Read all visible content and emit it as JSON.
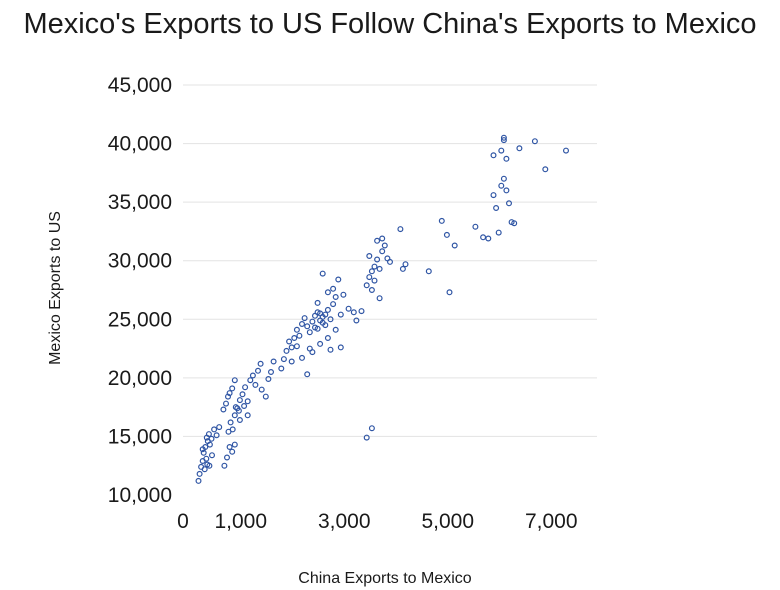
{
  "chart_data": {
    "type": "scatter",
    "title": "Mexico's Exports to US Follow China's Exports to Mexico",
    "xlabel": "China Exports to Mexico",
    "ylabel": "Mexico Exports to US",
    "xlim": [
      0,
      8000
    ],
    "ylim": [
      10000,
      45000
    ],
    "x_ticks": [
      0,
      1000,
      3000,
      5000,
      7000
    ],
    "x_tick_labels": [
      "0",
      "1,000",
      "3,000",
      "5,000",
      "7,000"
    ],
    "y_ticks": [
      10000,
      15000,
      20000,
      25000,
      30000,
      35000,
      40000,
      45000
    ],
    "y_tick_labels": [
      "10,000",
      "15,000",
      "20,000",
      "25,000",
      "30,000",
      "35,000",
      "40,000",
      "45,000"
    ],
    "grid": true,
    "legend": "none",
    "marker_color": "#2f55a4",
    "series": [
      {
        "points": [
          [
            300,
            11200
          ],
          [
            320,
            11800
          ],
          [
            350,
            12400
          ],
          [
            380,
            12900
          ],
          [
            420,
            12200
          ],
          [
            450,
            13100
          ],
          [
            400,
            13600
          ],
          [
            430,
            14100
          ],
          [
            480,
            14600
          ],
          [
            500,
            15200
          ],
          [
            520,
            14300
          ],
          [
            550,
            14800
          ],
          [
            600,
            15600
          ],
          [
            560,
            13400
          ],
          [
            470,
            12600
          ],
          [
            650,
            15100
          ],
          [
            700,
            15800
          ],
          [
            380,
            13900
          ],
          [
            510,
            12500
          ],
          [
            460,
            14900
          ],
          [
            800,
            12500
          ],
          [
            850,
            13200
          ],
          [
            900,
            14100
          ],
          [
            950,
            13700
          ],
          [
            1000,
            14300
          ],
          [
            880,
            15400
          ],
          [
            920,
            16200
          ],
          [
            1000,
            16800
          ],
          [
            1050,
            17400
          ],
          [
            1100,
            18100
          ],
          [
            780,
            17300
          ],
          [
            830,
            17800
          ],
          [
            870,
            18400
          ],
          [
            950,
            19100
          ],
          [
            1000,
            19800
          ],
          [
            1080,
            17200
          ],
          [
            1150,
            18600
          ],
          [
            1200,
            19200
          ],
          [
            1250,
            18000
          ],
          [
            1300,
            19800
          ],
          [
            1180,
            17600
          ],
          [
            1350,
            20200
          ],
          [
            1400,
            19400
          ],
          [
            1450,
            20600
          ],
          [
            1500,
            21200
          ],
          [
            1520,
            19000
          ],
          [
            1600,
            18400
          ],
          [
            1650,
            19900
          ],
          [
            1700,
            20500
          ],
          [
            1750,
            21400
          ],
          [
            1100,
            16400
          ],
          [
            1250,
            16800
          ],
          [
            900,
            18700
          ],
          [
            1020,
            17500
          ],
          [
            960,
            15600
          ],
          [
            1900,
            20800
          ],
          [
            1950,
            21600
          ],
          [
            2000,
            22300
          ],
          [
            2050,
            23100
          ],
          [
            2100,
            22600
          ],
          [
            2150,
            23400
          ],
          [
            2200,
            24100
          ],
          [
            2250,
            23600
          ],
          [
            2300,
            24600
          ],
          [
            2350,
            25100
          ],
          [
            2400,
            24400
          ],
          [
            2450,
            23900
          ],
          [
            2500,
            24800
          ],
          [
            2550,
            25300
          ],
          [
            2600,
            25600
          ],
          [
            2650,
            24900
          ],
          [
            2700,
            25200
          ],
          [
            2750,
            24500
          ],
          [
            2800,
            25800
          ],
          [
            2850,
            25000
          ],
          [
            2900,
            26300
          ],
          [
            2600,
            24200
          ],
          [
            2700,
            24700
          ],
          [
            2750,
            25400
          ],
          [
            2650,
            25500
          ],
          [
            2550,
            24300
          ],
          [
            2450,
            22500
          ],
          [
            2300,
            21700
          ],
          [
            2200,
            22700
          ],
          [
            2100,
            21400
          ],
          [
            2400,
            20300
          ],
          [
            2500,
            22200
          ],
          [
            2650,
            22900
          ],
          [
            2800,
            23400
          ],
          [
            2850,
            22400
          ],
          [
            2950,
            24100
          ],
          [
            3050,
            22600
          ],
          [
            2700,
            28900
          ],
          [
            2800,
            27300
          ],
          [
            2900,
            27600
          ],
          [
            3000,
            28400
          ],
          [
            3100,
            27100
          ],
          [
            3200,
            25900
          ],
          [
            3300,
            25600
          ],
          [
            3350,
            24900
          ],
          [
            3450,
            25700
          ],
          [
            2950,
            26900
          ],
          [
            3050,
            25400
          ],
          [
            2600,
            26400
          ],
          [
            3550,
            27900
          ],
          [
            3600,
            28600
          ],
          [
            3650,
            29100
          ],
          [
            3700,
            29500
          ],
          [
            3750,
            30100
          ],
          [
            3800,
            29300
          ],
          [
            3850,
            30800
          ],
          [
            3900,
            31300
          ],
          [
            3950,
            30200
          ],
          [
            3700,
            28300
          ],
          [
            3650,
            27500
          ],
          [
            3750,
            31700
          ],
          [
            3850,
            31900
          ],
          [
            4000,
            29900
          ],
          [
            3800,
            26800
          ],
          [
            3600,
            30400
          ],
          [
            3550,
            14900
          ],
          [
            3650,
            15700
          ],
          [
            4200,
            32700
          ],
          [
            4250,
            29300
          ],
          [
            4300,
            29700
          ],
          [
            4750,
            29100
          ],
          [
            5000,
            33400
          ],
          [
            5100,
            32200
          ],
          [
            5250,
            31300
          ],
          [
            5150,
            27300
          ],
          [
            5650,
            32900
          ],
          [
            5800,
            32000
          ],
          [
            5900,
            31900
          ],
          [
            6000,
            35600
          ],
          [
            6050,
            34500
          ],
          [
            6100,
            32400
          ],
          [
            6150,
            36400
          ],
          [
            6200,
            37000
          ],
          [
            6250,
            36000
          ],
          [
            6300,
            34900
          ],
          [
            6350,
            33300
          ],
          [
            6400,
            33200
          ],
          [
            6150,
            39400
          ],
          [
            6200,
            40300
          ],
          [
            6250,
            38700
          ],
          [
            6500,
            39600
          ],
          [
            6800,
            40200
          ],
          [
            7000,
            37800
          ],
          [
            7400,
            39400
          ],
          [
            6000,
            39000
          ],
          [
            6200,
            40500
          ]
        ]
      }
    ]
  }
}
